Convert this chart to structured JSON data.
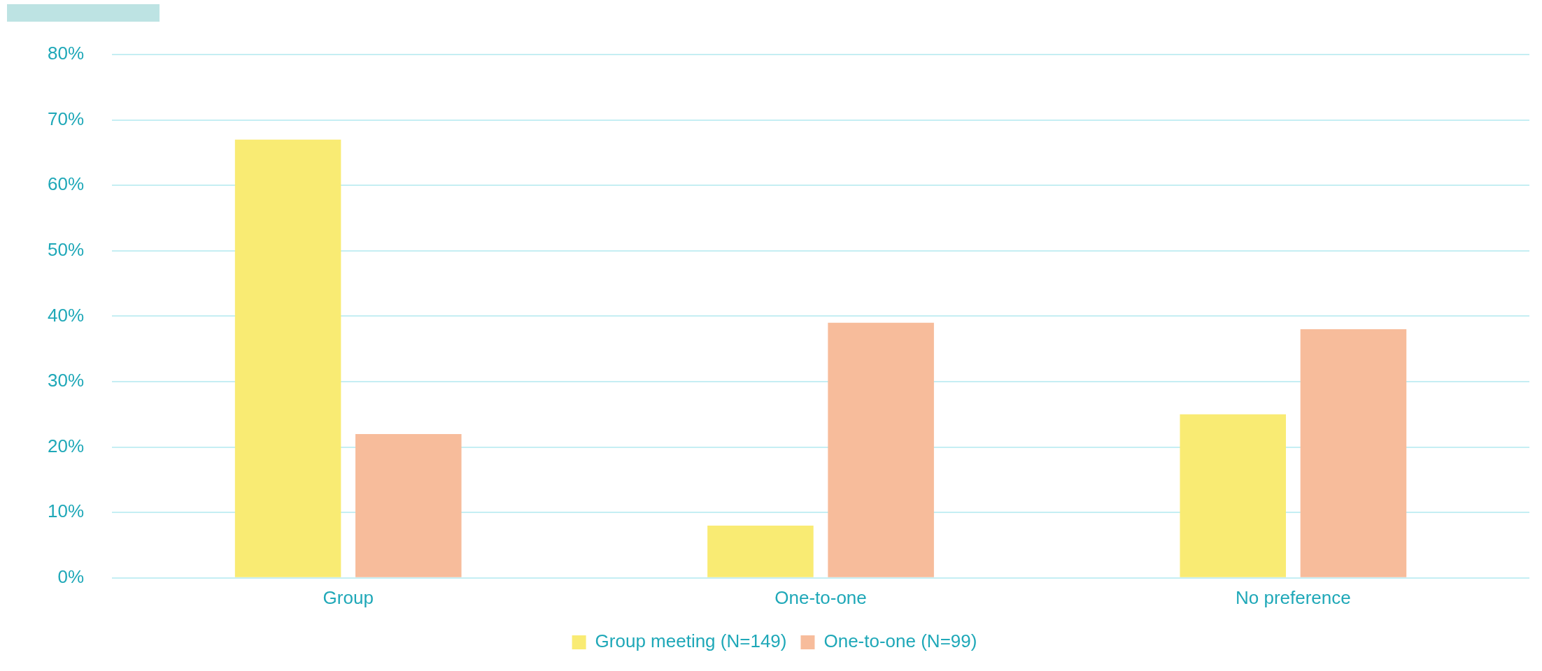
{
  "chart_data": {
    "type": "bar",
    "categories": [
      "Group",
      "One-to-one",
      "No preference"
    ],
    "series": [
      {
        "name": "Group meeting (N=149)",
        "color": "#f9eb73",
        "values": [
          67,
          8,
          25
        ]
      },
      {
        "name": "One-to-one (N=99)",
        "color": "#f7bc9b",
        "values": [
          22,
          39,
          38
        ]
      }
    ],
    "ylim": [
      0,
      80
    ],
    "yticks": [
      {
        "value": 0,
        "label": "0%"
      },
      {
        "value": 10,
        "label": "10%"
      },
      {
        "value": 20,
        "label": "20%"
      },
      {
        "value": 30,
        "label": "30%"
      },
      {
        "value": 40,
        "label": "40%"
      },
      {
        "value": 50,
        "label": "50%"
      },
      {
        "value": 60,
        "label": "60%"
      },
      {
        "value": 70,
        "label": "70%"
      },
      {
        "value": 80,
        "label": "80%"
      }
    ],
    "grid": "y",
    "legend": "bottom"
  }
}
